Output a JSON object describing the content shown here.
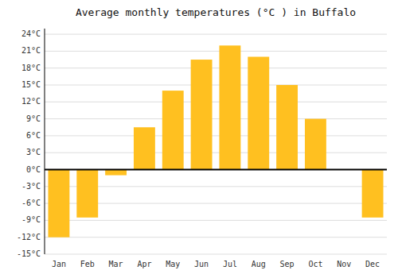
{
  "chart_data": {
    "type": "bar",
    "title": "Average monthly temperatures (°C ) in Buffalo",
    "categories": [
      "Jan",
      "Feb",
      "Mar",
      "Apr",
      "May",
      "Jun",
      "Jul",
      "Aug",
      "Sep",
      "Oct",
      "Nov",
      "Dec"
    ],
    "values": [
      -12,
      -8.5,
      -1,
      7.5,
      14,
      19.5,
      22,
      20,
      15,
      9,
      0,
      -8.5
    ],
    "color": "#FFC020",
    "ylim": [
      -15,
      25
    ],
    "yticks": [
      {
        "value": -15,
        "label": "-15°C"
      },
      {
        "value": -12,
        "label": "-12°C"
      },
      {
        "value": -9,
        "label": "-9°C"
      },
      {
        "value": -6,
        "label": "-6°C"
      },
      {
        "value": -3,
        "label": "-3°C"
      },
      {
        "value": 0,
        "label": "0°C"
      },
      {
        "value": 3,
        "label": "3°C"
      },
      {
        "value": 6,
        "label": "6°C"
      },
      {
        "value": 9,
        "label": "9°C"
      },
      {
        "value": 12,
        "label": "12°C"
      },
      {
        "value": 15,
        "label": "15°C"
      },
      {
        "value": 18,
        "label": "18°C"
      },
      {
        "value": 21,
        "label": "21°C"
      },
      {
        "value": 24,
        "label": "24°C"
      }
    ],
    "grid": true
  }
}
